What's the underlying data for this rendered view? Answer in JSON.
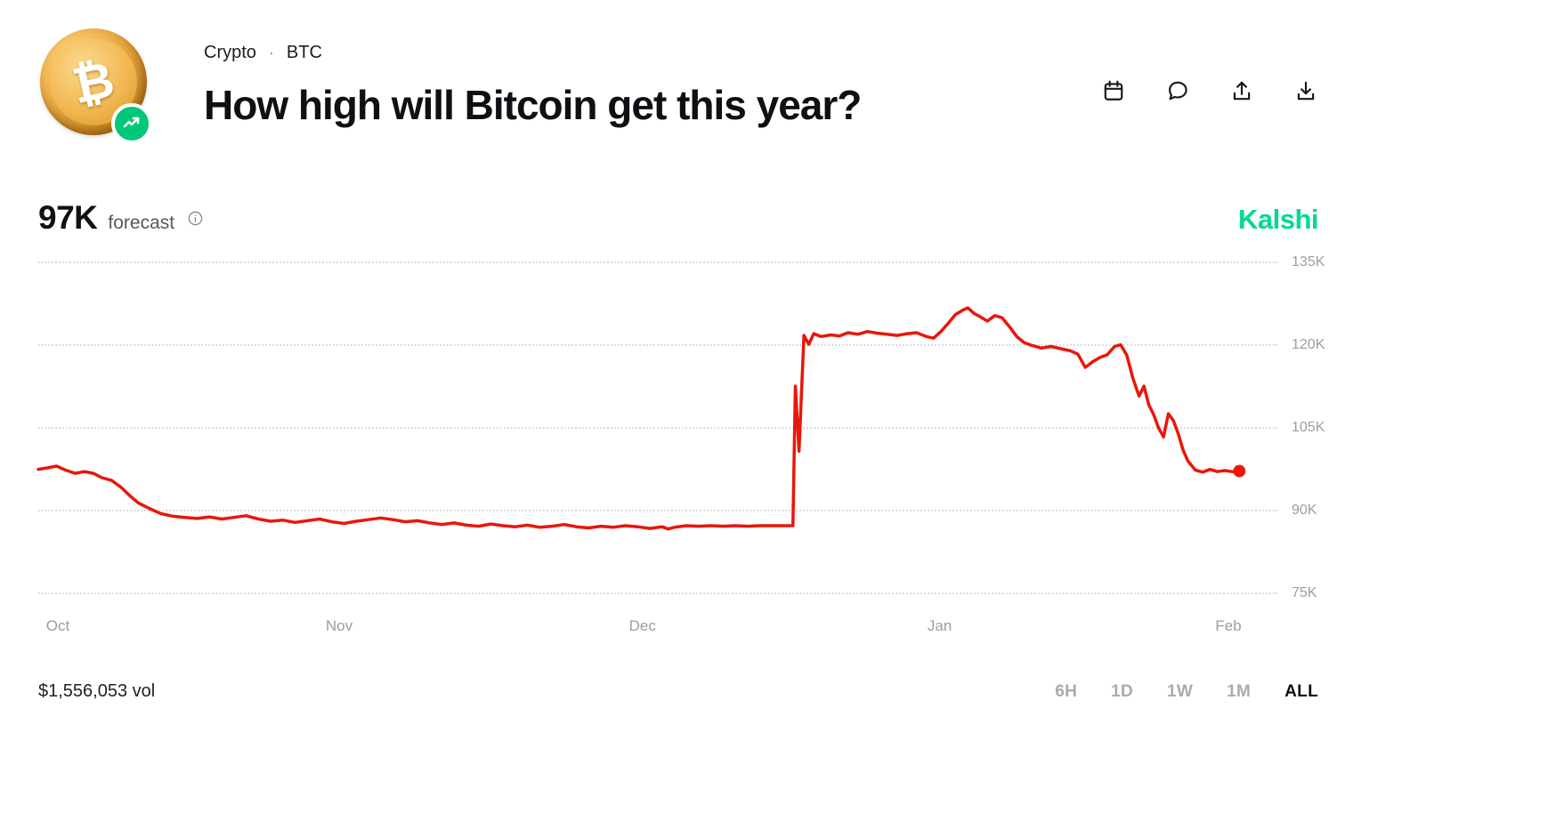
{
  "header": {
    "breadcrumb": {
      "category": "Crypto",
      "separator": "·",
      "ticker": "BTC"
    },
    "title": "How high will Bitcoin get this year?",
    "coin": {
      "symbol": "₿",
      "badge": "trend-up",
      "badge_color": "#00C878"
    },
    "actions": {
      "calendar": "calendar",
      "comment": "comment",
      "share": "share",
      "download": "download"
    }
  },
  "forecast": {
    "value": "97K",
    "label": "forecast"
  },
  "brand": {
    "name": "Kalshi",
    "color": "#00D991"
  },
  "chart_data": {
    "type": "line",
    "title": "How high will Bitcoin get this year? — forecast history",
    "ylabel": "forecast",
    "ylim": [
      75,
      135
    ],
    "yticks": [
      {
        "label": "135K",
        "value": 135
      },
      {
        "label": "120K",
        "value": 120
      },
      {
        "label": "105K",
        "value": 105
      },
      {
        "label": "90K",
        "value": 90
      },
      {
        "label": "75K",
        "value": 75
      }
    ],
    "xticks": [
      {
        "label": "Oct",
        "pos": 0.016
      },
      {
        "label": "Nov",
        "pos": 0.246
      },
      {
        "label": "Dec",
        "pos": 0.494
      },
      {
        "label": "Jan",
        "pos": 0.737
      },
      {
        "label": "Feb",
        "pos": 0.973
      }
    ],
    "grid": "horizontal-dotted",
    "legend": "none",
    "line_color": "#E8170B",
    "series": [
      {
        "name": "forecast",
        "points": [
          [
            0.0,
            97.3
          ],
          [
            0.008,
            97.6
          ],
          [
            0.015,
            97.9
          ],
          [
            0.022,
            97.2
          ],
          [
            0.03,
            96.6
          ],
          [
            0.038,
            96.9
          ],
          [
            0.045,
            96.6
          ],
          [
            0.052,
            95.8
          ],
          [
            0.06,
            95.3
          ],
          [
            0.068,
            94.0
          ],
          [
            0.075,
            92.5
          ],
          [
            0.082,
            91.2
          ],
          [
            0.09,
            90.3
          ],
          [
            0.1,
            89.3
          ],
          [
            0.11,
            88.8
          ],
          [
            0.12,
            88.6
          ],
          [
            0.13,
            88.4
          ],
          [
            0.14,
            88.7
          ],
          [
            0.15,
            88.3
          ],
          [
            0.16,
            88.6
          ],
          [
            0.17,
            88.9
          ],
          [
            0.18,
            88.3
          ],
          [
            0.19,
            87.9
          ],
          [
            0.2,
            88.1
          ],
          [
            0.21,
            87.7
          ],
          [
            0.22,
            88.0
          ],
          [
            0.23,
            88.3
          ],
          [
            0.24,
            87.8
          ],
          [
            0.25,
            87.5
          ],
          [
            0.26,
            87.9
          ],
          [
            0.27,
            88.2
          ],
          [
            0.28,
            88.5
          ],
          [
            0.29,
            88.2
          ],
          [
            0.3,
            87.8
          ],
          [
            0.31,
            88.0
          ],
          [
            0.32,
            87.6
          ],
          [
            0.33,
            87.3
          ],
          [
            0.34,
            87.6
          ],
          [
            0.35,
            87.2
          ],
          [
            0.36,
            87.0
          ],
          [
            0.37,
            87.4
          ],
          [
            0.38,
            87.1
          ],
          [
            0.39,
            86.9
          ],
          [
            0.4,
            87.2
          ],
          [
            0.41,
            86.8
          ],
          [
            0.42,
            87.0
          ],
          [
            0.43,
            87.3
          ],
          [
            0.44,
            86.9
          ],
          [
            0.45,
            86.7
          ],
          [
            0.46,
            87.0
          ],
          [
            0.47,
            86.8
          ],
          [
            0.48,
            87.1
          ],
          [
            0.49,
            86.9
          ],
          [
            0.5,
            86.6
          ],
          [
            0.51,
            86.9
          ],
          [
            0.515,
            86.5
          ],
          [
            0.52,
            86.8
          ],
          [
            0.53,
            87.1
          ],
          [
            0.54,
            87.0
          ],
          [
            0.55,
            87.1
          ],
          [
            0.56,
            87.0
          ],
          [
            0.57,
            87.1
          ],
          [
            0.58,
            87.0
          ],
          [
            0.59,
            87.1
          ],
          [
            0.6,
            87.1
          ],
          [
            0.61,
            87.1
          ],
          [
            0.617,
            87.1
          ],
          [
            0.619,
            112.4
          ],
          [
            0.622,
            100.6
          ],
          [
            0.626,
            121.6
          ],
          [
            0.63,
            120.0
          ],
          [
            0.634,
            121.9
          ],
          [
            0.64,
            121.4
          ],
          [
            0.648,
            121.7
          ],
          [
            0.655,
            121.5
          ],
          [
            0.662,
            122.1
          ],
          [
            0.67,
            121.8
          ],
          [
            0.678,
            122.3
          ],
          [
            0.686,
            122.0
          ],
          [
            0.694,
            121.8
          ],
          [
            0.702,
            121.6
          ],
          [
            0.71,
            121.9
          ],
          [
            0.718,
            122.1
          ],
          [
            0.726,
            121.4
          ],
          [
            0.732,
            121.1
          ],
          [
            0.738,
            122.3
          ],
          [
            0.744,
            123.8
          ],
          [
            0.75,
            125.4
          ],
          [
            0.756,
            126.2
          ],
          [
            0.76,
            126.6
          ],
          [
            0.765,
            125.6
          ],
          [
            0.77,
            125.0
          ],
          [
            0.776,
            124.2
          ],
          [
            0.782,
            125.2
          ],
          [
            0.788,
            124.8
          ],
          [
            0.794,
            123.2
          ],
          [
            0.8,
            121.4
          ],
          [
            0.806,
            120.3
          ],
          [
            0.812,
            119.8
          ],
          [
            0.82,
            119.3
          ],
          [
            0.828,
            119.6
          ],
          [
            0.836,
            119.2
          ],
          [
            0.844,
            118.8
          ],
          [
            0.85,
            118.2
          ],
          [
            0.856,
            115.8
          ],
          [
            0.862,
            116.8
          ],
          [
            0.868,
            117.6
          ],
          [
            0.874,
            118.1
          ],
          [
            0.88,
            119.6
          ],
          [
            0.885,
            119.9
          ],
          [
            0.89,
            118.0
          ],
          [
            0.895,
            113.8
          ],
          [
            0.9,
            110.6
          ],
          [
            0.904,
            112.4
          ],
          [
            0.908,
            109.0
          ],
          [
            0.912,
            107.2
          ],
          [
            0.916,
            104.8
          ],
          [
            0.92,
            103.2
          ],
          [
            0.924,
            107.4
          ],
          [
            0.928,
            106.2
          ],
          [
            0.932,
            103.8
          ],
          [
            0.936,
            100.8
          ],
          [
            0.94,
            98.8
          ],
          [
            0.946,
            97.2
          ],
          [
            0.952,
            96.8
          ],
          [
            0.958,
            97.3
          ],
          [
            0.964,
            96.9
          ],
          [
            0.97,
            97.1
          ],
          [
            0.976,
            96.9
          ],
          [
            0.982,
            97.0
          ]
        ]
      }
    ],
    "endpoint_marker": {
      "x": 0.982,
      "value": 97.0,
      "style": "dot"
    }
  },
  "footer": {
    "volume": "$1,556,053 vol",
    "ranges": [
      {
        "label": "6H",
        "selected": false
      },
      {
        "label": "1D",
        "selected": false
      },
      {
        "label": "1W",
        "selected": false
      },
      {
        "label": "1M",
        "selected": false
      },
      {
        "label": "ALL",
        "selected": true
      }
    ]
  }
}
